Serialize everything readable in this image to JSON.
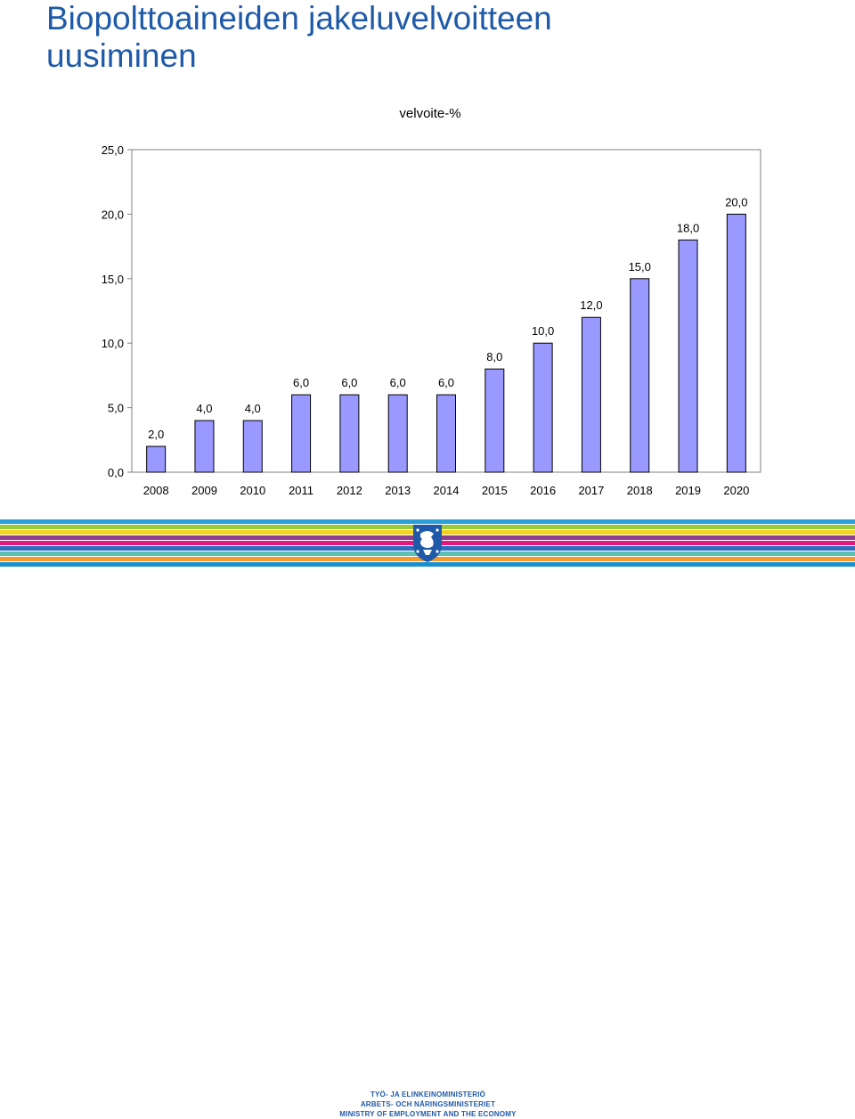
{
  "slide": {
    "title_line1": "Biopolttoaineiden jakeluvelvoitteen",
    "title_line2": "uusiminen"
  },
  "chart_data": {
    "type": "bar",
    "title": "velvoite-%",
    "xlabel": "",
    "ylabel": "",
    "categories": [
      "2008",
      "2009",
      "2010",
      "2011",
      "2012",
      "2013",
      "2014",
      "2015",
      "2016",
      "2017",
      "2018",
      "2019",
      "2020"
    ],
    "values": [
      2.0,
      4.0,
      4.0,
      6.0,
      6.0,
      6.0,
      6.0,
      8.0,
      10.0,
      12.0,
      15.0,
      18.0,
      20.0
    ],
    "value_labels": [
      "2,0",
      "4,0",
      "4,0",
      "6,0",
      "6,0",
      "6,0",
      "6,0",
      "8,0",
      "10,0",
      "12,0",
      "15,0",
      "18,0",
      "20,0"
    ],
    "ylim": [
      0,
      25
    ],
    "yticks": [
      0,
      5,
      10,
      15,
      20,
      25
    ],
    "ytick_labels": [
      "0,0",
      "5,0",
      "10,0",
      "15,0",
      "20,0",
      "25,0"
    ],
    "grid": false,
    "legend": "none",
    "bar_color": "#9999ff"
  },
  "footer": {
    "ministry_fi": "TYÖ- JA ELINKEINOMINISTERIÖ",
    "ministry_sv": "ARBETS- OCH NÄRINGSMINISTERIET",
    "ministry_en": "MINISTRY OF EMPLOYMENT AND THE ECONOMY",
    "stripe_colors": [
      "#2aa0d8",
      "#9bc93a",
      "#f2d21f",
      "#8e3d92",
      "#e2187d",
      "#2f6cc0",
      "#5cc0b5",
      "#f39a2b",
      "#1a8fcf"
    ],
    "logo": "lion-crest-logo"
  }
}
